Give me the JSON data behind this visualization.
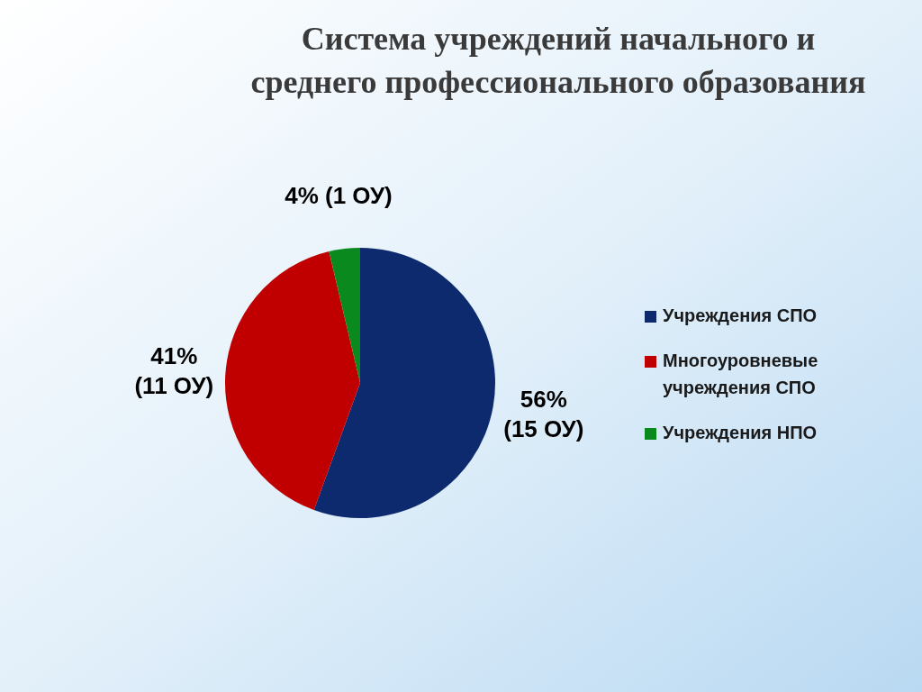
{
  "chart_data": {
    "type": "pie",
    "title": "Система учреждений начального и среднего профессионального образования",
    "categories": [
      "Учреждения СПО",
      "Многоуровневые учреждения СПО",
      "Учреждения НПО"
    ],
    "values": [
      15,
      11,
      1
    ],
    "colors": [
      "#0d2a6e",
      "#c00000",
      "#0a8a1e"
    ],
    "value_labels": [
      "56%\n(15 ОУ)",
      "41%\n(11 ОУ)",
      "4% (1 ОУ)"
    ],
    "legend": "right"
  }
}
